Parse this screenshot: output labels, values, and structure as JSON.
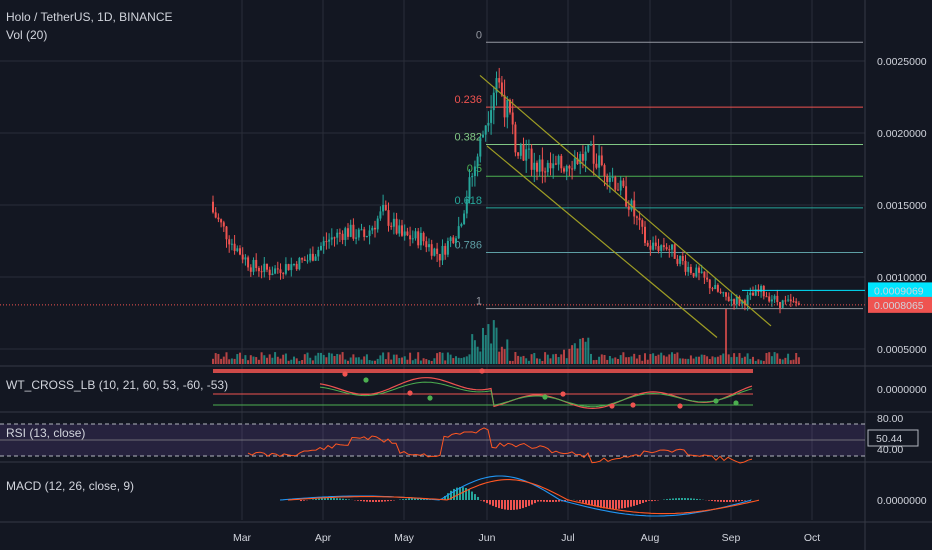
{
  "header": {
    "symbol_line": "Holo / TetherUS, 1D, BINANCE",
    "volume_label": "Vol (20)"
  },
  "colors": {
    "background": "#131722",
    "up": "#26a69a",
    "down": "#ef5350",
    "grid": "#2a2e39",
    "channel": "#9e9d24",
    "macd_line": "#2196f3",
    "signal_line": "#ff5722",
    "rsi_line": "#ff5722",
    "rsi_band": "#7e57c2",
    "price_tag_current": "#ef5350",
    "price_tag_level": "#00e5ff"
  },
  "chart_data": [
    {
      "type": "candlestick",
      "title": "Holo / TetherUS, 1D, BINANCE",
      "ylim": [
        0.0002,
        0.0027
      ],
      "y_ticks": [
        "0.0025000",
        "0.0020000",
        "0.0015000",
        "0.0010000",
        "0.0005000"
      ],
      "x_ticks": [
        "Mar",
        "Apr",
        "May",
        "Jun",
        "Jul",
        "Aug",
        "Sep",
        "Oct"
      ],
      "fib_levels": [
        {
          "label": "0",
          "value": 0.00263,
          "color": "#9598a1"
        },
        {
          "label": "0.236",
          "value": 0.00218,
          "color": "#ef5350"
        },
        {
          "label": "0.382",
          "value": 0.00192,
          "color": "#81c784"
        },
        {
          "label": "0.5",
          "value": 0.0017,
          "color": "#4caf50"
        },
        {
          "label": "0.618",
          "value": 0.00148,
          "color": "#26a69a"
        },
        {
          "label": "0.786",
          "value": 0.00117,
          "color": "#5e9fa5"
        },
        {
          "label": "1",
          "value": 0.00078,
          "color": "#9598a1"
        }
      ],
      "price_tags": [
        {
          "label": "0.0009069",
          "value": 0.0009069
        },
        {
          "label": "0.0008065",
          "value": 0.0008065
        }
      ],
      "channel": {
        "upper": [
          [
            "Jun",
            0.0024
          ],
          [
            "Sep+18",
            0.00072
          ]
        ],
        "lower": [
          [
            "Jun",
            0.00191
          ],
          [
            "Aug+22",
            0.00062
          ]
        ]
      },
      "closes_by_week": [
        0.00145,
        0.00124,
        0.00108,
        0.00104,
        0.00108,
        0.00112,
        0.00125,
        0.00132,
        0.00128,
        0.00145,
        0.00128,
        0.00127,
        0.00115,
        0.00135,
        0.00185,
        0.0024,
        0.00195,
        0.00178,
        0.00174,
        0.00182,
        0.00184,
        0.00172,
        0.00152,
        0.00121,
        0.00122,
        0.00108,
        0.00098,
        0.00086,
        0.00083,
        0.0009,
        0.00082,
        0.00081
      ]
    },
    {
      "type": "oscillator",
      "title": "WT_CROSS_LB (10, 21, 60, 53, -60, -53)",
      "y_ticks": [
        "0.0000000"
      ]
    },
    {
      "type": "line",
      "title": "RSI (13, close)",
      "y_ticks": [
        "80.00",
        "40.00"
      ],
      "current_value": "50.44"
    },
    {
      "type": "macd",
      "title": "MACD (12, 26, close, 9)",
      "y_ticks": [
        "0.0000000"
      ]
    }
  ]
}
